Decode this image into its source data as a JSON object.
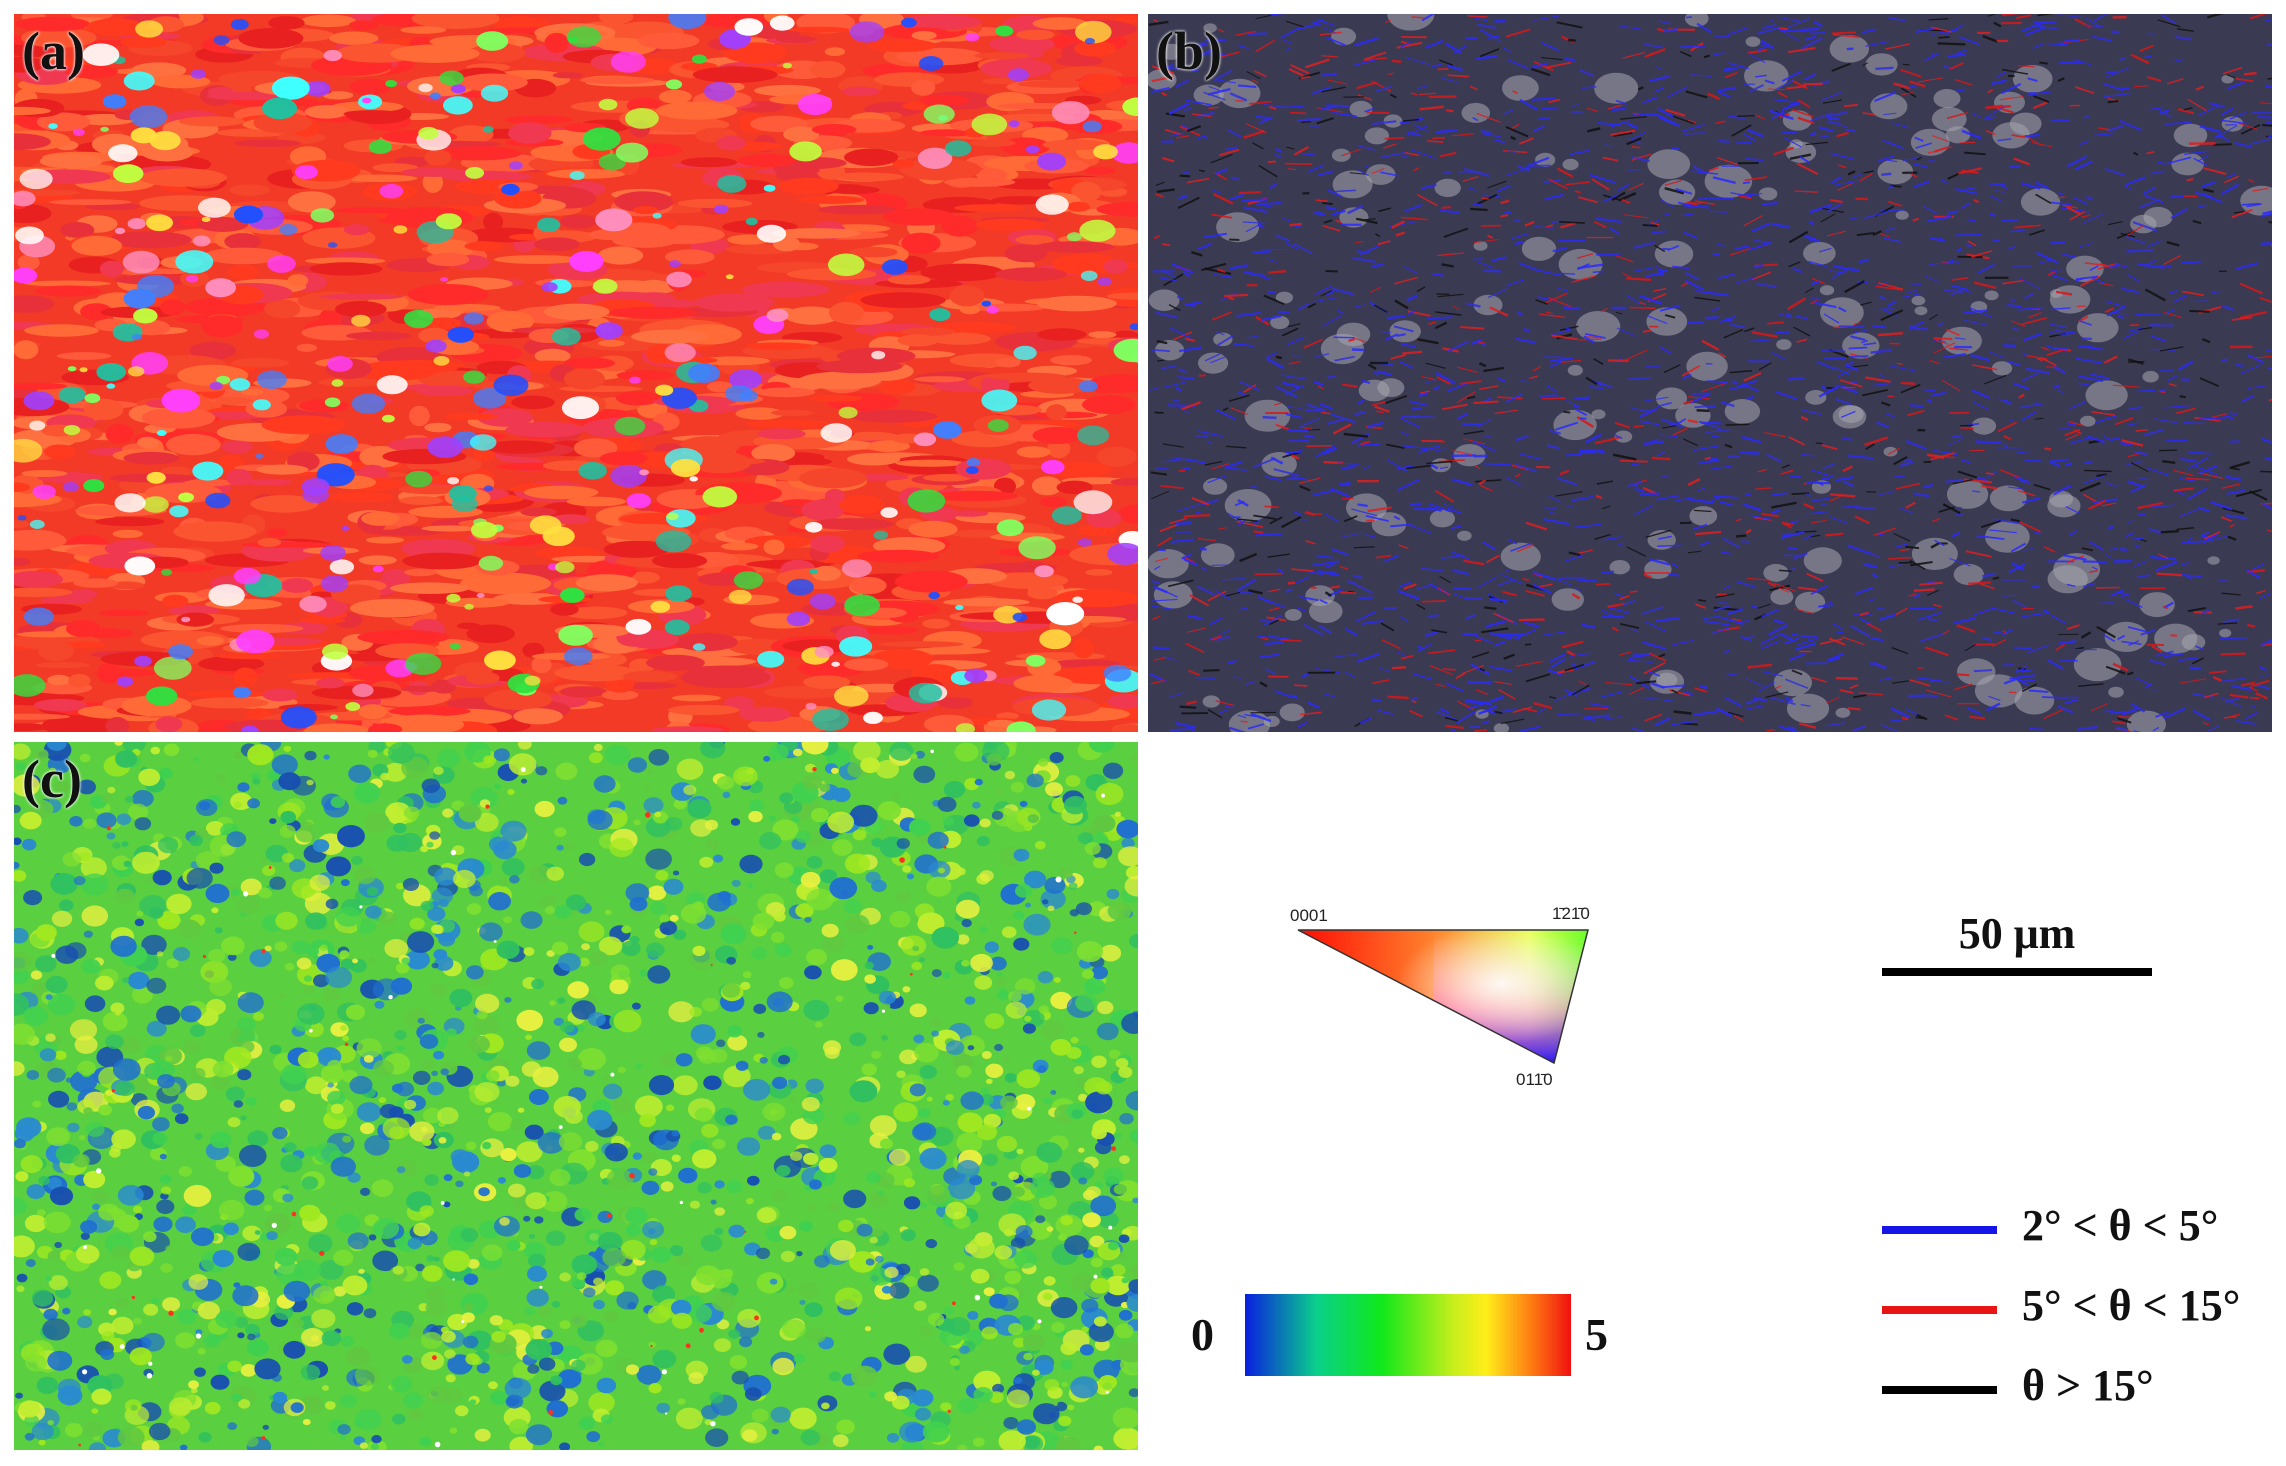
{
  "panels": {
    "a": {
      "label": "(a)"
    },
    "b": {
      "label": "(b)"
    },
    "c": {
      "label": "(c)"
    }
  },
  "ipf_key": {
    "corner_0001": "0001",
    "corner_1210": "1̄21̄0",
    "corner_0110": "011̄0"
  },
  "scale_bar": {
    "label": "50 μm"
  },
  "kam_scale": {
    "min": "0",
    "max": "5"
  },
  "boundary_legend": [
    {
      "label": "2° < θ < 5°",
      "color": "#1515e8"
    },
    {
      "label": "5° < θ < 15°",
      "color": "#e81515"
    },
    {
      "label": "θ > 15°",
      "color": "#000000"
    }
  ]
}
